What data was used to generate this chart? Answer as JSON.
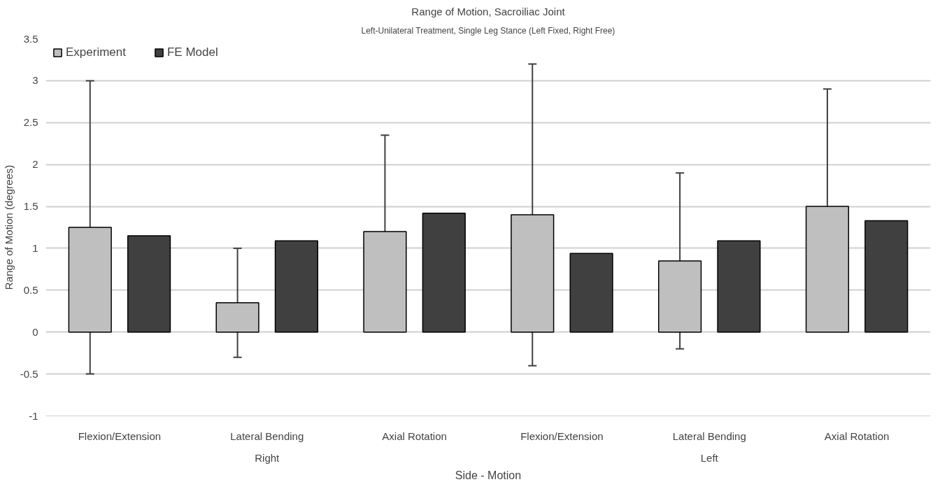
{
  "chart_data": {
    "type": "bar",
    "title": "Range of Motion, Sacroiliac Joint",
    "subtitle": "Left-Unilateral Treatment, Single Leg Stance (Left Fixed, Right Free)",
    "xlabel": "Side - Motion",
    "ylabel": "Range of Motion (degrees)",
    "categories": [
      "Flexion/Extension",
      "Lateral Bending",
      "Axial Rotation",
      "Flexion/Extension",
      "Lateral Bending",
      "Axial Rotation"
    ],
    "annotations": [
      "Right",
      "Left"
    ],
    "series": [
      {
        "name": "Experiment",
        "color": "#bfbfbf",
        "values": [
          1.25,
          0.35,
          1.2,
          1.4,
          0.85,
          1.5
        ],
        "errors": [
          1.75,
          0.65,
          1.15,
          1.8,
          1.05,
          1.4
        ]
      },
      {
        "name": "FE Model",
        "color": "#404040",
        "values": [
          1.15,
          1.09,
          1.42,
          0.94,
          1.09,
          1.33
        ]
      }
    ],
    "ylim": [
      -1,
      3.5
    ],
    "yticks": [
      {
        "value": -1,
        "label": "-1"
      },
      {
        "value": -0.5,
        "label": "-0.5"
      },
      0,
      0.5,
      1,
      1.5,
      2,
      2.5,
      3,
      3.5
    ],
    "grid": "y",
    "legend": "top left"
  }
}
